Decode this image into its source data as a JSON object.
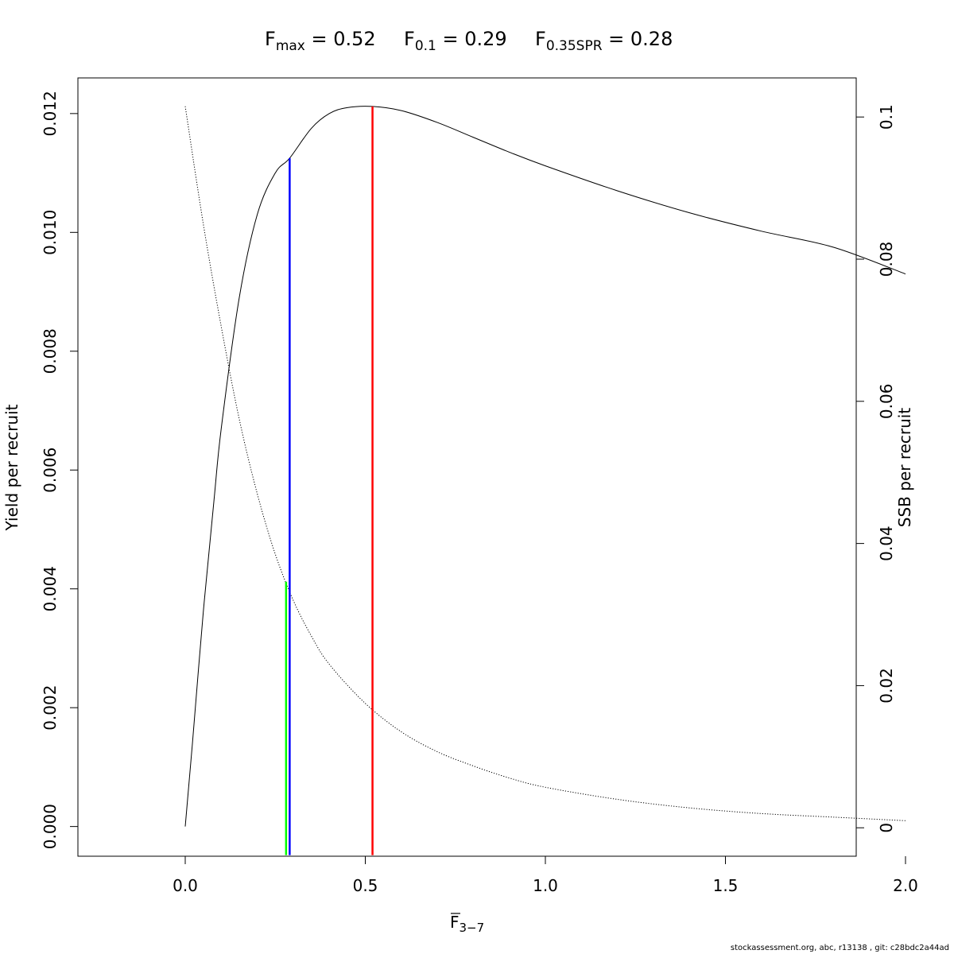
{
  "chart_data": {
    "type": "line",
    "title": {
      "fmax": {
        "base": "F",
        "sub": "max",
        "value": "0.52"
      },
      "f01": {
        "base": "F",
        "sub": "0.1",
        "value": "0.29"
      },
      "fspr": {
        "base": "F",
        "sub": "0.35SPR",
        "value": "0.28"
      }
    },
    "xlabel": {
      "base": "F",
      "sub": "3−7"
    },
    "ylabel_left": "Yield per recruit",
    "ylabel_right": "SSB per recruit",
    "xlim": [
      0,
      2
    ],
    "ylim_left": [
      -0.0005,
      0.0126
    ],
    "ylim_right": [
      -0.004,
      0.1055
    ],
    "x_ticks": [
      "0.0",
      "0.5",
      "1.0",
      "1.5",
      "2.0"
    ],
    "y_left_ticks": [
      "0.000",
      "0.002",
      "0.004",
      "0.006",
      "0.008",
      "0.010",
      "0.012"
    ],
    "y_right_ticks": [
      "0",
      "0.02",
      "0.04",
      "0.06",
      "0.08",
      "0.1"
    ],
    "series": [
      {
        "role": "yield",
        "axis": "left",
        "style": "solid",
        "x": [
          0,
          0.02,
          0.05,
          0.08,
          0.1,
          0.15,
          0.2,
          0.25,
          0.29,
          0.35,
          0.4,
          0.45,
          0.52,
          0.6,
          0.7,
          0.8,
          0.9,
          1.0,
          1.2,
          1.4,
          1.6,
          1.8,
          2.0
        ],
        "y": [
          0,
          0.0014,
          0.0036,
          0.0055,
          0.0067,
          0.0089,
          0.0103,
          0.011,
          0.01125,
          0.01175,
          0.012,
          0.0121,
          0.01212,
          0.01205,
          0.01185,
          0.0116,
          0.01135,
          0.01112,
          0.0107,
          0.01033,
          0.01002,
          0.00975,
          0.0093
        ]
      },
      {
        "role": "ssb",
        "axis": "right",
        "style": "dotted",
        "x": [
          0,
          0.05,
          0.1,
          0.15,
          0.2,
          0.25,
          0.3,
          0.35,
          0.4,
          0.5,
          0.6,
          0.7,
          0.8,
          0.9,
          1.0,
          1.2,
          1.4,
          1.6,
          1.8,
          2.0
        ],
        "y": [
          0.1015,
          0.085,
          0.0705,
          0.0575,
          0.047,
          0.0385,
          0.032,
          0.027,
          0.023,
          0.0175,
          0.0135,
          0.0107,
          0.0087,
          0.007,
          0.0057,
          0.004,
          0.0028,
          0.002,
          0.0015,
          0.001
        ]
      }
    ],
    "ref_lines": [
      {
        "ref": "Fmax",
        "x": 0.52,
        "y": 0.01212,
        "color": "#ff0000"
      },
      {
        "ref": "F0.1",
        "x": 0.29,
        "y": 0.01125,
        "color": "#0000ff"
      },
      {
        "ref": "F0.35SPR",
        "x": 0.28,
        "y": 0.00412,
        "color": "#00ff00"
      }
    ],
    "grid": false,
    "legend": "none"
  },
  "footer": "stockassessment.org, abc, r13138 , git: c28bdc2a44ad"
}
